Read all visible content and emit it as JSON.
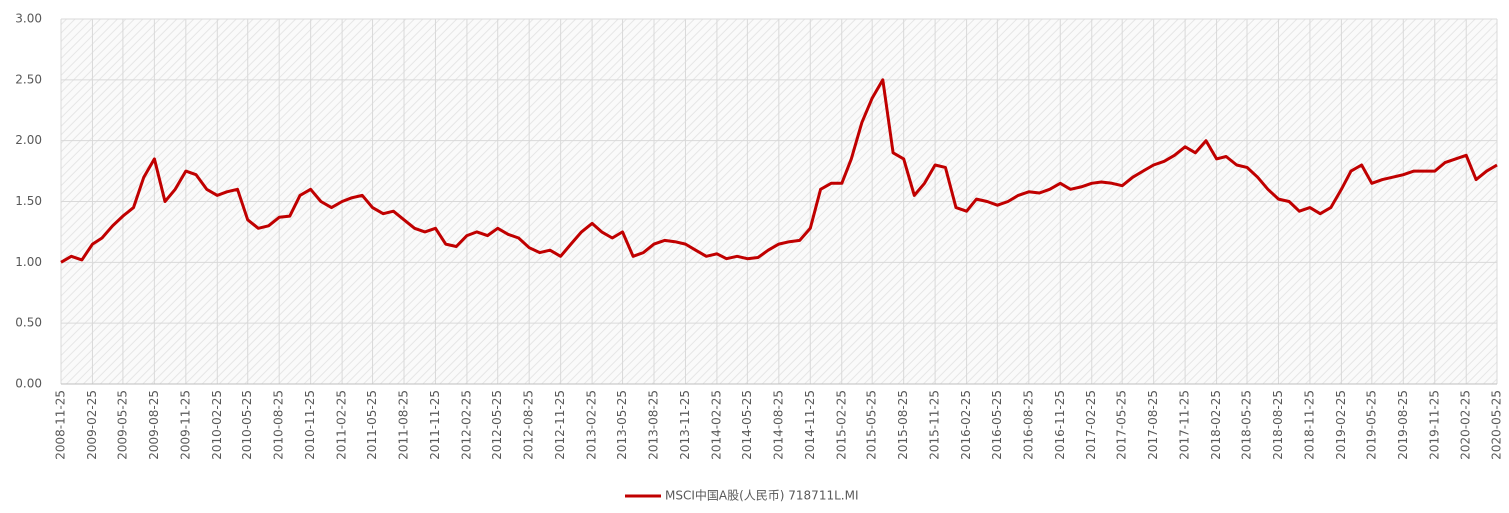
{
  "chart_data": {
    "type": "line",
    "x": [
      "2008-11-25",
      "2008-12-25",
      "2009-01-25",
      "2009-02-25",
      "2009-03-25",
      "2009-04-25",
      "2009-05-25",
      "2009-06-25",
      "2009-07-25",
      "2009-08-25",
      "2009-09-25",
      "2009-10-25",
      "2009-11-25",
      "2009-12-25",
      "2010-01-25",
      "2010-02-25",
      "2010-03-25",
      "2010-04-25",
      "2010-05-25",
      "2010-06-25",
      "2010-07-25",
      "2010-08-25",
      "2010-09-25",
      "2010-10-25",
      "2010-11-25",
      "2010-12-25",
      "2011-01-25",
      "2011-02-25",
      "2011-03-25",
      "2011-04-25",
      "2011-05-25",
      "2011-06-25",
      "2011-07-25",
      "2011-08-25",
      "2011-09-25",
      "2011-10-25",
      "2011-11-25",
      "2011-12-25",
      "2012-01-25",
      "2012-02-25",
      "2012-03-25",
      "2012-04-25",
      "2012-05-25",
      "2012-06-25",
      "2012-07-25",
      "2012-08-25",
      "2012-09-25",
      "2012-10-25",
      "2012-11-25",
      "2012-12-25",
      "2013-01-25",
      "2013-02-25",
      "2013-03-25",
      "2013-04-25",
      "2013-05-25",
      "2013-06-25",
      "2013-07-25",
      "2013-08-25",
      "2013-09-25",
      "2013-10-25",
      "2013-11-25",
      "2013-12-25",
      "2014-01-25",
      "2014-02-25",
      "2014-03-25",
      "2014-04-25",
      "2014-05-25",
      "2014-06-25",
      "2014-07-25",
      "2014-08-25",
      "2014-09-25",
      "2014-10-25",
      "2014-11-25",
      "2014-12-25",
      "2015-01-25",
      "2015-02-25",
      "2015-03-25",
      "2015-04-25",
      "2015-05-25",
      "2015-06-25",
      "2015-07-25",
      "2015-08-25",
      "2015-09-25",
      "2015-10-25",
      "2015-11-25",
      "2015-12-25",
      "2016-01-25",
      "2016-02-25",
      "2016-03-25",
      "2016-04-25",
      "2016-05-25",
      "2016-06-25",
      "2016-07-25",
      "2016-08-25",
      "2016-09-25",
      "2016-10-25",
      "2016-11-25",
      "2016-12-25",
      "2017-01-25",
      "2017-02-25",
      "2017-03-25",
      "2017-04-25",
      "2017-05-25",
      "2017-06-25",
      "2017-07-25",
      "2017-08-25",
      "2017-09-25",
      "2017-10-25",
      "2017-11-25",
      "2017-12-25",
      "2018-01-25",
      "2018-02-25",
      "2018-03-25",
      "2018-04-25",
      "2018-05-25",
      "2018-06-25",
      "2018-07-25",
      "2018-08-25",
      "2018-09-25",
      "2018-10-25",
      "2018-11-25",
      "2018-12-25",
      "2019-01-25",
      "2019-02-25",
      "2019-03-25",
      "2019-04-25",
      "2019-05-25",
      "2019-06-25",
      "2019-07-25",
      "2019-08-25",
      "2019-09-25",
      "2019-10-25",
      "2019-11-25",
      "2019-12-25",
      "2020-01-25",
      "2020-02-25",
      "2020-03-25",
      "2020-04-25",
      "2020-05-25"
    ],
    "series": [
      {
        "name": "MSCI中国A股(人民币) 718711L.MI",
        "color": "#c00000",
        "values": [
          1.0,
          1.05,
          1.02,
          1.15,
          1.2,
          1.3,
          1.38,
          1.45,
          1.7,
          1.85,
          1.5,
          1.6,
          1.75,
          1.72,
          1.6,
          1.55,
          1.58,
          1.6,
          1.35,
          1.28,
          1.3,
          1.37,
          1.38,
          1.55,
          1.6,
          1.5,
          1.45,
          1.5,
          1.53,
          1.55,
          1.45,
          1.4,
          1.42,
          1.35,
          1.28,
          1.25,
          1.28,
          1.15,
          1.13,
          1.22,
          1.25,
          1.22,
          1.28,
          1.23,
          1.2,
          1.12,
          1.08,
          1.1,
          1.05,
          1.15,
          1.25,
          1.32,
          1.25,
          1.2,
          1.25,
          1.05,
          1.08,
          1.15,
          1.18,
          1.17,
          1.15,
          1.1,
          1.05,
          1.07,
          1.03,
          1.05,
          1.03,
          1.04,
          1.1,
          1.15,
          1.17,
          1.18,
          1.28,
          1.6,
          1.65,
          1.65,
          1.85,
          2.15,
          2.35,
          2.5,
          1.9,
          1.85,
          1.55,
          1.65,
          1.8,
          1.78,
          1.45,
          1.42,
          1.52,
          1.5,
          1.47,
          1.5,
          1.55,
          1.58,
          1.57,
          1.6,
          1.65,
          1.6,
          1.62,
          1.65,
          1.66,
          1.65,
          1.63,
          1.7,
          1.75,
          1.8,
          1.83,
          1.88,
          1.95,
          1.9,
          2.0,
          1.85,
          1.87,
          1.8,
          1.78,
          1.7,
          1.6,
          1.52,
          1.5,
          1.42,
          1.45,
          1.4,
          1.45,
          1.6,
          1.75,
          1.8,
          1.65,
          1.68,
          1.7,
          1.72,
          1.75,
          1.75,
          1.75,
          1.82,
          1.85,
          1.88,
          1.68,
          1.75,
          1.8
        ]
      }
    ],
    "xlim": [
      "2008-11-25",
      "2020-05-25"
    ],
    "xticks": [
      "2008-11-25",
      "2009-02-25",
      "2009-05-25",
      "2009-08-25",
      "2009-11-25",
      "2010-02-25",
      "2010-05-25",
      "2010-08-25",
      "2010-11-25",
      "2011-02-25",
      "2011-05-25",
      "2011-08-25",
      "2011-11-25",
      "2012-02-25",
      "2012-05-25",
      "2012-08-25",
      "2012-11-25",
      "2013-02-25",
      "2013-05-25",
      "2013-08-25",
      "2013-11-25",
      "2014-02-25",
      "2014-05-25",
      "2014-08-25",
      "2014-11-25",
      "2015-02-25",
      "2015-05-25",
      "2015-08-25",
      "2015-11-25",
      "2016-02-25",
      "2016-05-25",
      "2016-08-25",
      "2016-11-25",
      "2017-02-25",
      "2017-05-25",
      "2017-08-25",
      "2017-11-25",
      "2018-02-25",
      "2018-05-25",
      "2018-08-25",
      "2018-11-25",
      "2019-02-25",
      "2019-05-25",
      "2019-08-25",
      "2019-11-25",
      "2020-02-25",
      "2020-05-25"
    ],
    "ylim": [
      0,
      3
    ],
    "yticks": [
      {
        "value": 0,
        "label": "0.00"
      },
      {
        "value": 0.5,
        "label": "0.50"
      },
      {
        "value": 1,
        "label": "1.00"
      },
      {
        "value": 1.5,
        "label": "1.50"
      },
      {
        "value": 2,
        "label": "2.00"
      },
      {
        "value": 2.5,
        "label": "2.50"
      },
      {
        "value": 3,
        "label": "3.00"
      }
    ],
    "grid": true,
    "legend": "bottom"
  }
}
